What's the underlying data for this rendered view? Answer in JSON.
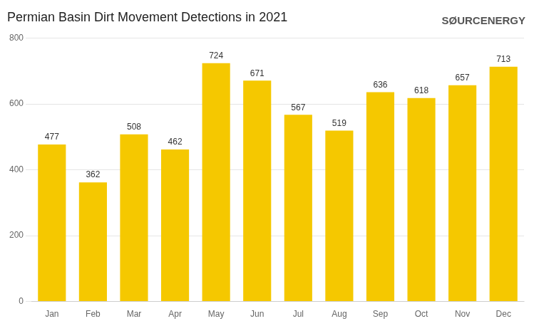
{
  "chart_data": {
    "type": "bar",
    "title": "Permian Basin Dirt Movement Detections in 2021",
    "categories": [
      "Jan",
      "Feb",
      "Mar",
      "Apr",
      "May",
      "Jun",
      "Jul",
      "Aug",
      "Sep",
      "Oct",
      "Nov",
      "Dec"
    ],
    "values": [
      477,
      362,
      508,
      462,
      724,
      671,
      567,
      519,
      636,
      618,
      657,
      713
    ],
    "color": "#F5C800",
    "ylim": [
      0,
      800
    ],
    "yticks": [
      0,
      200,
      400,
      600,
      800
    ],
    "grid": true,
    "data_labels": true,
    "annotations": [
      "SØURCENERGY"
    ]
  }
}
